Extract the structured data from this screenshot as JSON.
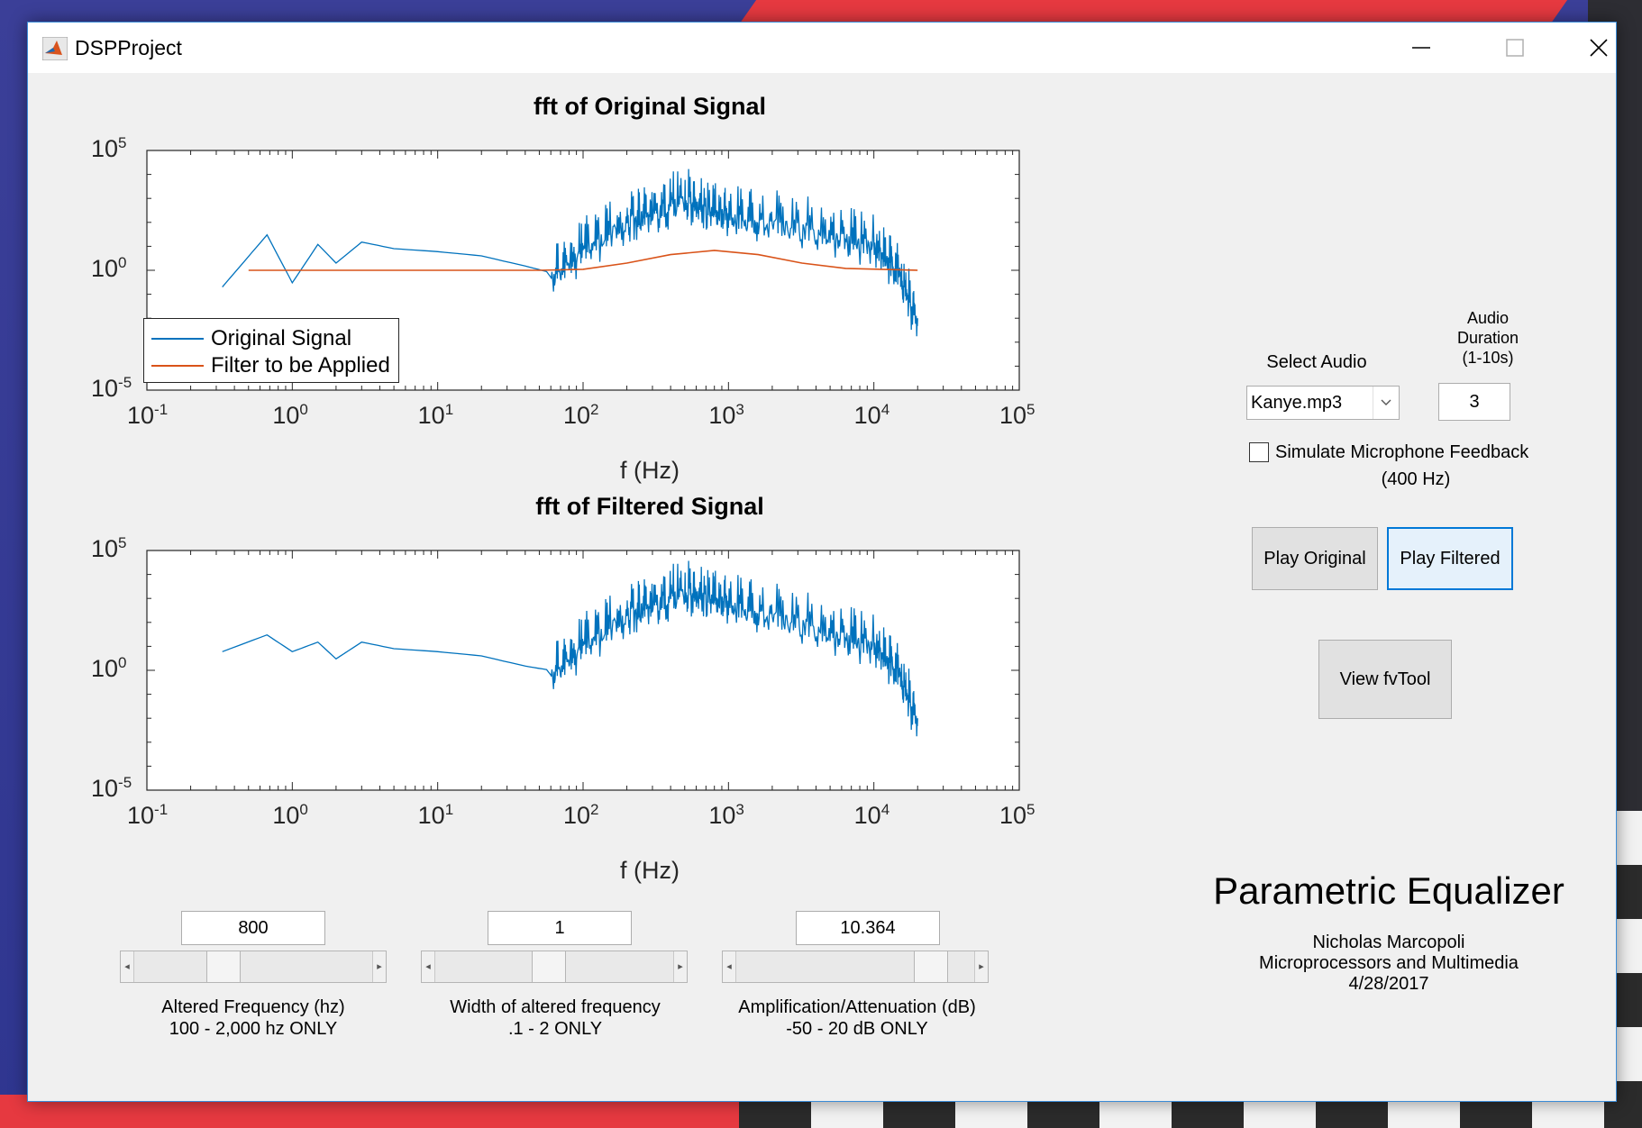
{
  "window": {
    "title": "DSPProject"
  },
  "plots": [
    {
      "title": "fft of Original Signal",
      "xlabel": "f (Hz)",
      "x_ticks": [
        "10^-1",
        "10^0",
        "10^1",
        "10^2",
        "10^3",
        "10^4",
        "10^5"
      ],
      "y_ticks": [
        "10^5",
        "10^0",
        "10^-5"
      ],
      "legend": [
        {
          "label": "Original Signal",
          "color": "#0072bd"
        },
        {
          "label": "Filter to be Applied",
          "color": "#d95319"
        }
      ]
    },
    {
      "title": "fft of Filtered Signal",
      "xlabel": "f (Hz)",
      "x_ticks": [
        "10^-1",
        "10^0",
        "10^1",
        "10^2",
        "10^3",
        "10^4",
        "10^5"
      ],
      "y_ticks": [
        "10^5",
        "10^0",
        "10^-5"
      ]
    }
  ],
  "chart_data": [
    {
      "type": "line",
      "title": "fft of Original Signal",
      "xlabel": "f (Hz)",
      "xscale": "log",
      "yscale": "log",
      "xlim": [
        0.1,
        100000
      ],
      "ylim": [
        1e-05,
        100000
      ],
      "series": [
        {
          "name": "Original Signal",
          "color": "#0072bd",
          "points": [
            [
              0.33,
              0.2
            ],
            [
              0.67,
              30
            ],
            [
              1,
              0.3
            ],
            [
              1.5,
              12
            ],
            [
              2,
              2
            ],
            [
              3,
              15
            ],
            [
              5,
              8
            ],
            [
              10,
              6
            ],
            [
              20,
              4
            ],
            [
              40,
              1.5
            ],
            [
              60,
              0.8
            ],
            [
              100,
              10
            ],
            [
              200,
              200
            ],
            [
              300,
              400
            ],
            [
              500,
              1500
            ],
            [
              700,
              600
            ],
            [
              1000,
              300
            ],
            [
              2000,
              150
            ],
            [
              5000,
              50
            ],
            [
              10000,
              20
            ],
            [
              15000,
              1
            ],
            [
              20000,
              0.01
            ]
          ]
        },
        {
          "name": "Filter to be Applied",
          "color": "#d95319",
          "points": [
            [
              0.5,
              1
            ],
            [
              50,
              1
            ],
            [
              100,
              1.1
            ],
            [
              200,
              2
            ],
            [
              400,
              4.5
            ],
            [
              800,
              6.8
            ],
            [
              1600,
              4.5
            ],
            [
              3200,
              2
            ],
            [
              6400,
              1.2
            ],
            [
              20000,
              1
            ]
          ]
        }
      ],
      "legend_position": "bottom-left"
    },
    {
      "type": "line",
      "title": "fft of Filtered Signal",
      "xlabel": "f (Hz)",
      "xscale": "log",
      "yscale": "log",
      "xlim": [
        0.1,
        100000
      ],
      "ylim": [
        1e-05,
        100000
      ],
      "series": [
        {
          "color": "#0072bd",
          "points": [
            [
              0.33,
              6
            ],
            [
              0.67,
              30
            ],
            [
              1,
              6
            ],
            [
              1.5,
              15
            ],
            [
              2,
              3
            ],
            [
              3,
              15
            ],
            [
              5,
              8
            ],
            [
              10,
              6
            ],
            [
              20,
              4
            ],
            [
              40,
              1.5
            ],
            [
              60,
              1
            ],
            [
              100,
              15
            ],
            [
              200,
              400
            ],
            [
              300,
              900
            ],
            [
              500,
              3000
            ],
            [
              700,
              2000
            ],
            [
              1000,
              1000
            ],
            [
              2000,
              300
            ],
            [
              5000,
              60
            ],
            [
              10000,
              20
            ],
            [
              15000,
              1
            ],
            [
              20000,
              0.01
            ]
          ]
        }
      ]
    }
  ],
  "controls": {
    "select_audio_label": "Select Audio",
    "audio_file": "Kanye.mp3",
    "duration_label_1": "Audio",
    "duration_label_2": "Duration",
    "duration_label_3": "(1-10s)",
    "duration_value": "3",
    "mic_label": "Simulate Microphone Feedback",
    "mic_sub": "(400 Hz)",
    "mic_checked": false,
    "play_original": "Play Original",
    "play_filtered": "Play Filtered",
    "view_fvtool": "View fvTool"
  },
  "sliders": [
    {
      "value": "800",
      "label": "Altered Frequency (hz)",
      "sub": "100 - 2,000 hz ONLY",
      "level": 0.35
    },
    {
      "value": "1",
      "label": "Width of altered frequency",
      "sub": ".1 - 2 ONLY",
      "level": 0.47
    },
    {
      "value": "10.364",
      "label": "Amplification/Attenuation (dB)",
      "sub": "-50 - 20 dB ONLY",
      "level": 0.86
    }
  ],
  "info": {
    "heading": "Parametric Equalizer",
    "author": "Nicholas Marcopoli",
    "course": "Microprocessors and Multimedia",
    "date": "4/28/2017"
  }
}
